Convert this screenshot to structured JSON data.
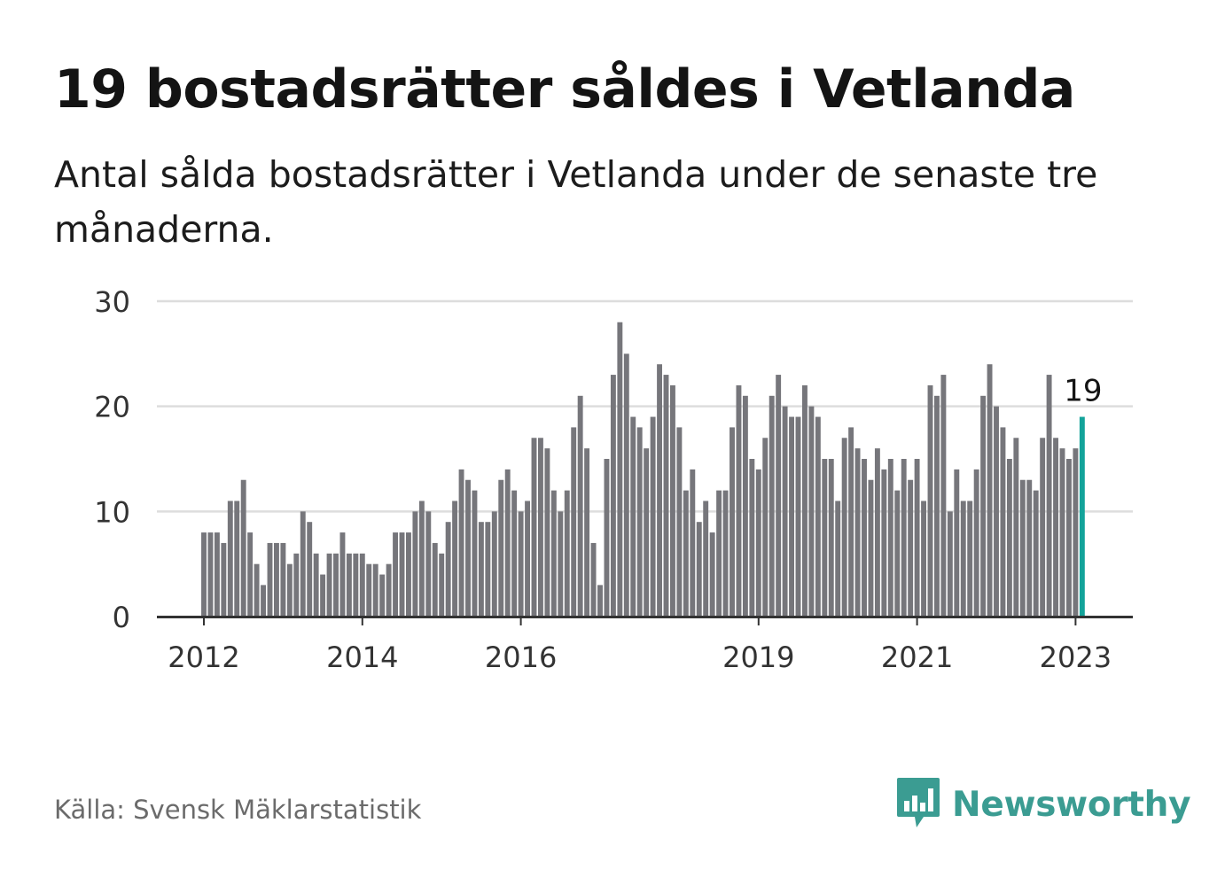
{
  "header": {
    "title": "19 bostadsrätter såldes i Vetlanda",
    "subtitle": "Antal sålda bostadsrätter i Vetlanda under de senaste tre månaderna."
  },
  "footer": {
    "source": "Källa: Svensk Mäklarstatistik",
    "brand": "Newsworthy",
    "brand_icon": "bar-chart-speech-bubble-icon"
  },
  "colors": {
    "bar": "#76767b",
    "highlight": "#13a39a",
    "grid": "#dddddd",
    "axis": "#333333",
    "brand": "#3b9c92"
  },
  "chart_data": {
    "type": "bar",
    "title": "19 bostadsrätter såldes i Vetlanda",
    "xlabel": "",
    "ylabel": "",
    "ylim": [
      0,
      30
    ],
    "yticks": [
      0,
      10,
      20,
      30
    ],
    "grid": true,
    "start": {
      "year": 2012,
      "month": 1
    },
    "xtick_labels": [
      {
        "label": "2012",
        "index": 0
      },
      {
        "label": "2014",
        "index": 24
      },
      {
        "label": "2016",
        "index": 48
      },
      {
        "label": "2019",
        "index": 84
      },
      {
        "label": "2021",
        "index": 108
      },
      {
        "label": "2023",
        "index": 132
      }
    ],
    "highlight": {
      "index": 133,
      "label": "19"
    },
    "values": [
      8,
      8,
      8,
      7,
      11,
      11,
      13,
      8,
      5,
      3,
      7,
      7,
      7,
      5,
      6,
      10,
      9,
      6,
      4,
      6,
      6,
      8,
      6,
      6,
      6,
      5,
      5,
      4,
      5,
      8,
      8,
      8,
      10,
      11,
      10,
      7,
      6,
      9,
      11,
      14,
      13,
      12,
      9,
      9,
      10,
      13,
      14,
      12,
      10,
      11,
      17,
      17,
      16,
      12,
      10,
      12,
      18,
      21,
      16,
      7,
      3,
      15,
      23,
      28,
      25,
      19,
      18,
      16,
      19,
      24,
      23,
      22,
      18,
      12,
      14,
      9,
      11,
      8,
      12,
      12,
      18,
      22,
      21,
      15,
      14,
      17,
      21,
      23,
      20,
      19,
      19,
      22,
      20,
      19,
      15,
      15,
      11,
      17,
      18,
      16,
      15,
      13,
      16,
      14,
      15,
      12,
      15,
      13,
      15,
      11,
      22,
      21,
      23,
      10,
      14,
      11,
      11,
      14,
      21,
      24,
      20,
      18,
      15,
      17,
      13,
      13,
      12,
      17,
      23,
      17,
      16,
      15,
      16,
      19
    ]
  }
}
